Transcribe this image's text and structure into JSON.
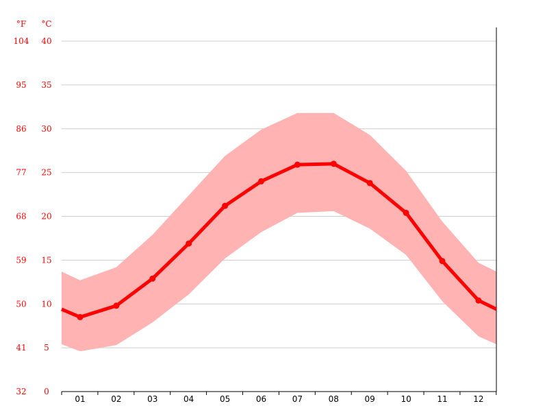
{
  "chart_data": {
    "type": "line",
    "title": "",
    "xlabel": "",
    "ylabel_left": "°F",
    "ylabel_right": "°C",
    "categories": [
      "01",
      "02",
      "03",
      "04",
      "05",
      "06",
      "07",
      "08",
      "09",
      "10",
      "11",
      "12"
    ],
    "y_ticks_c": [
      "0",
      "5",
      "10",
      "15",
      "20",
      "25",
      "30",
      "35",
      "40"
    ],
    "y_ticks_f": [
      "32",
      "41",
      "50",
      "59",
      "68",
      "77",
      "86",
      "95",
      "104"
    ],
    "ylim": [
      0,
      40
    ],
    "grid": true,
    "legend": "none",
    "series": [
      {
        "role": "mean",
        "values": [
          8.5,
          9.8,
          12.9,
          16.9,
          21.2,
          24.0,
          25.9,
          26.0,
          23.8,
          20.4,
          14.9,
          10.4
        ]
      },
      {
        "role": "range-max",
        "values": [
          12.7,
          14.2,
          17.9,
          22.4,
          26.9,
          29.9,
          31.8,
          31.8,
          29.3,
          25.2,
          19.4,
          14.7
        ]
      },
      {
        "role": "range-min",
        "values": [
          4.6,
          5.3,
          7.9,
          11.1,
          15.2,
          18.2,
          20.4,
          20.6,
          18.6,
          15.6,
          10.3,
          6.3
        ]
      }
    ],
    "edge_values": {
      "mean": {
        "left": 9.4,
        "right": 9.4
      },
      "max": {
        "left": 13.7,
        "right": 13.7
      },
      "min": {
        "left": 5.4,
        "right": 5.4
      }
    },
    "colors": {
      "line": "#ff0000",
      "band": "#ffb3b3",
      "grid": "#cccccc",
      "axis": "#000000",
      "tick_text_y": "#ff0000",
      "tick_text_x": "#000000"
    }
  }
}
